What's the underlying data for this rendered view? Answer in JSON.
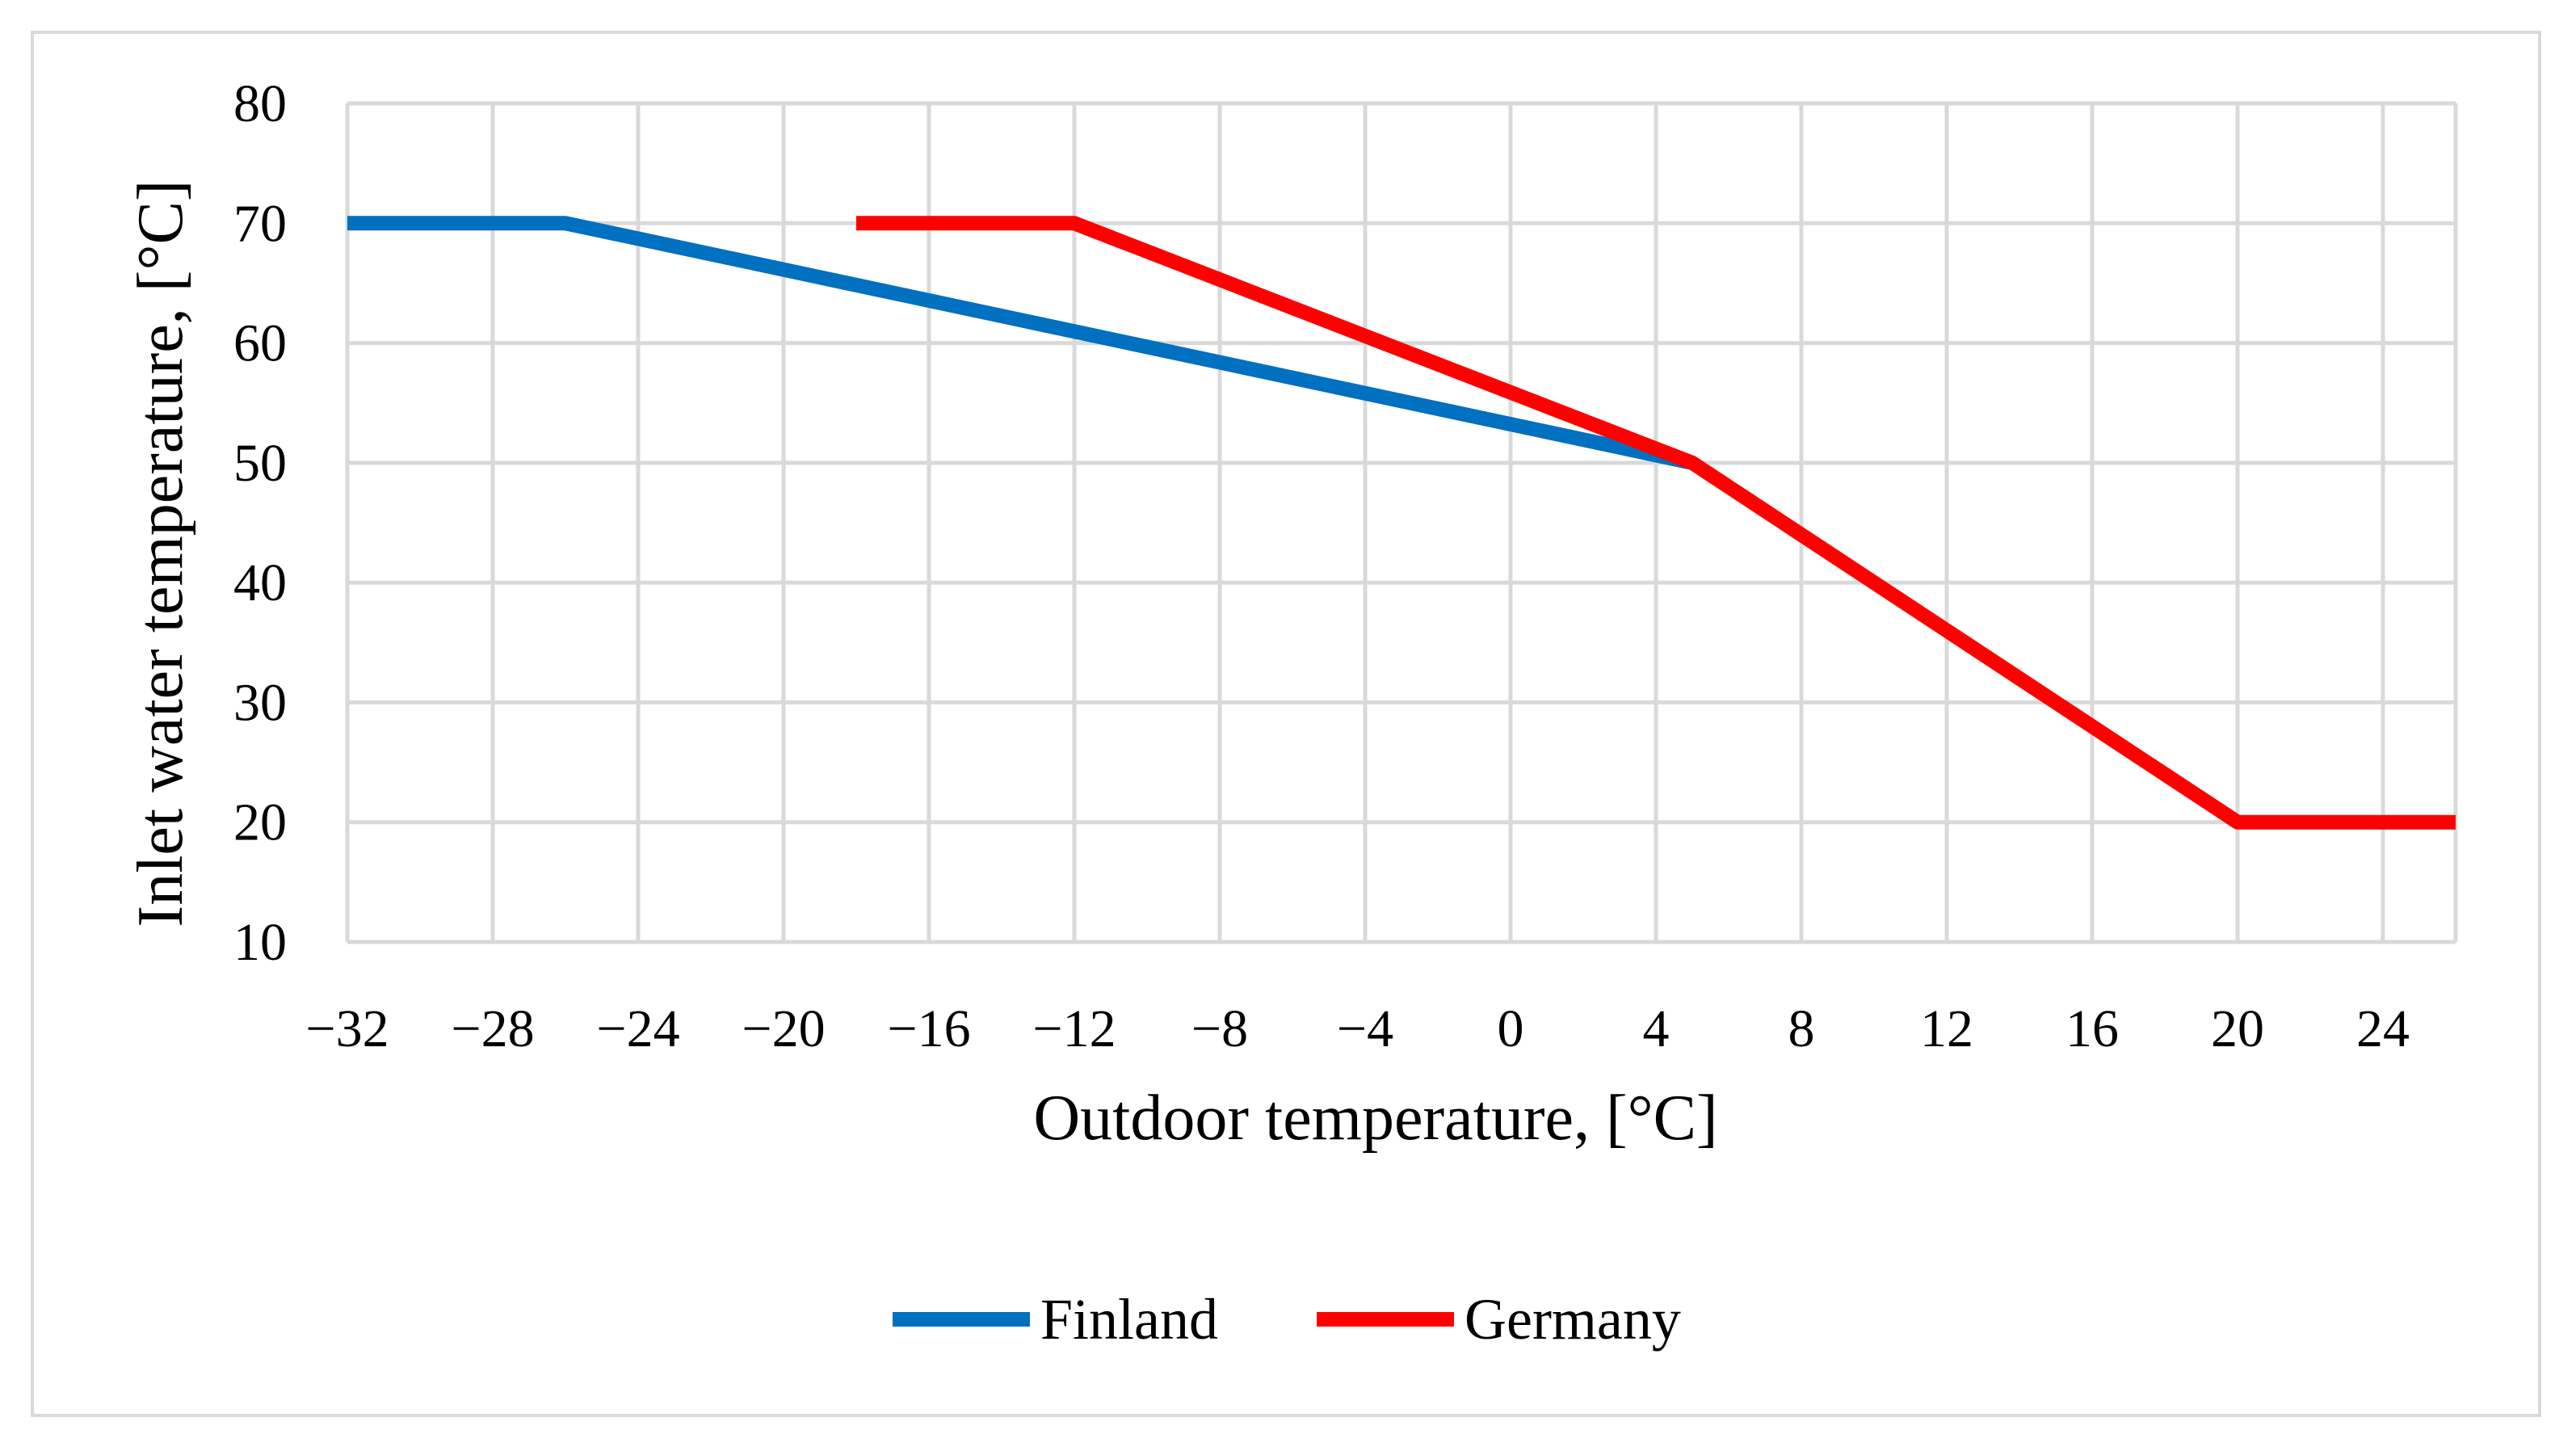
{
  "chart_data": {
    "type": "line",
    "title": "",
    "xlabel": "Outdoor temperature, [°C]",
    "ylabel": "Inlet water temperature, [°C]",
    "xlim": [
      -32,
      26
    ],
    "ylim": [
      10,
      80
    ],
    "x_ticks": [
      -32,
      -28,
      -24,
      -20,
      -16,
      -12,
      -8,
      -4,
      0,
      4,
      8,
      12,
      16,
      20,
      24
    ],
    "x_tick_labels": [
      "−32",
      "−28",
      "−24",
      "−20",
      "−16",
      "−12",
      "−8",
      "−4",
      "0",
      "4",
      "8",
      "12",
      "16",
      "20",
      "24"
    ],
    "y_ticks": [
      10,
      20,
      30,
      40,
      50,
      60,
      70,
      80
    ],
    "y_tick_labels": [
      "10",
      "20",
      "30",
      "40",
      "50",
      "60",
      "70",
      "80"
    ],
    "grid": true,
    "legend_position": "bottom",
    "series": [
      {
        "name": "Finland",
        "color": "#0070C0",
        "points": [
          [
            -32,
            70
          ],
          [
            -26,
            70
          ],
          [
            5,
            50
          ]
        ]
      },
      {
        "name": "Germany",
        "color": "#FF0000",
        "points": [
          [
            -18,
            70
          ],
          [
            -12,
            70
          ],
          [
            5,
            50
          ],
          [
            20,
            20
          ],
          [
            26,
            20
          ]
        ]
      }
    ]
  }
}
